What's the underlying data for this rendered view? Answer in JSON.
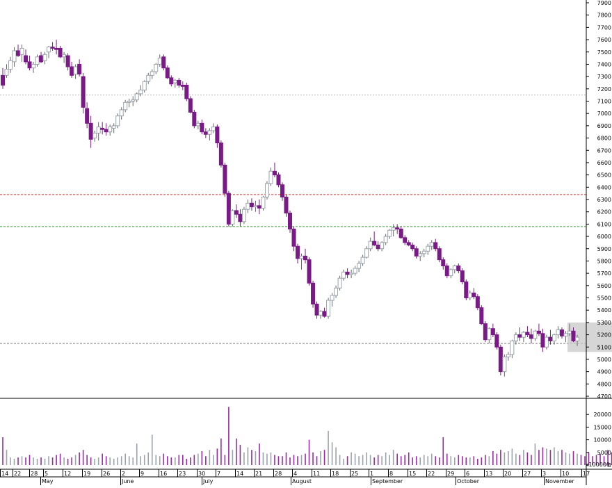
{
  "chart_data": {
    "type": "candlestick",
    "title": "",
    "colors": {
      "up": "#9aa3ab",
      "down": "#7a1a86",
      "volume": "#9a2aa6",
      "axis": "#000000",
      "highlight_box": "#c8c8c8"
    },
    "price_axis": {
      "ylim": [
        4700,
        7900
      ],
      "ticks": [
        7900,
        7800,
        7700,
        7600,
        7500,
        7400,
        7300,
        7200,
        7100,
        7000,
        6900,
        6800,
        6700,
        6600,
        6500,
        6400,
        6300,
        6200,
        6100,
        6000,
        5900,
        5800,
        5700,
        5600,
        5500,
        5400,
        5300,
        5200,
        5100,
        5000,
        4900,
        4800,
        4700
      ]
    },
    "volume_axis": {
      "ylim": [
        0,
        25000
      ],
      "ticks": [
        20000,
        15000,
        10000,
        5000,
        0
      ],
      "unit_label": "x100000"
    },
    "x_axis": {
      "day_labels": [
        "14",
        "22",
        "28",
        "5",
        "12",
        "19",
        "26",
        "2",
        "9",
        "16",
        "23",
        "30",
        "7",
        "14",
        "21",
        "28",
        "4",
        "11",
        "18",
        "25",
        "1",
        "8",
        "15",
        "22",
        "29",
        "6",
        "13",
        "20",
        "27",
        "3",
        "10",
        "17"
      ],
      "month_labels": [
        "May",
        "June",
        "July",
        "August",
        "September",
        "October",
        "November"
      ]
    },
    "reference_lines": [
      {
        "value": 7150,
        "color": "#bbbbbb",
        "style": "dotted"
      },
      {
        "value": 6340,
        "color": "#e03030",
        "style": "dashed"
      },
      {
        "value": 6080,
        "color": "#30a030",
        "style": "dashed"
      },
      {
        "value": 5130,
        "color": "#777777",
        "style": "dashed"
      }
    ],
    "highlight_range": {
      "low": 5060,
      "high": 5300,
      "from_index": 148,
      "to_index": 166
    },
    "series": [
      {
        "name": "Price",
        "ohlc": [
          [
            7310,
            7370,
            7200,
            7230
          ],
          [
            7310,
            7400,
            7290,
            7360
          ],
          [
            7360,
            7460,
            7330,
            7430
          ],
          [
            7420,
            7540,
            7380,
            7510
          ],
          [
            7510,
            7560,
            7460,
            7470
          ],
          [
            7480,
            7560,
            7420,
            7530
          ],
          [
            7470,
            7520,
            7400,
            7420
          ],
          [
            7420,
            7470,
            7350,
            7370
          ],
          [
            7370,
            7420,
            7330,
            7400
          ],
          [
            7400,
            7480,
            7380,
            7460
          ],
          [
            7470,
            7500,
            7410,
            7420
          ],
          [
            7430,
            7500,
            7400,
            7480
          ],
          [
            7500,
            7550,
            7450,
            7540
          ],
          [
            7540,
            7580,
            7510,
            7530
          ],
          [
            7530,
            7600,
            7480,
            7520
          ],
          [
            7530,
            7550,
            7450,
            7460
          ],
          [
            7460,
            7500,
            7410,
            7480
          ],
          [
            7470,
            7490,
            7350,
            7380
          ],
          [
            7380,
            7420,
            7290,
            7310
          ],
          [
            7320,
            7400,
            7280,
            7380
          ],
          [
            7400,
            7440,
            7300,
            7320
          ],
          [
            7300,
            7330,
            7000,
            7050
          ],
          [
            7040,
            7090,
            6880,
            6920
          ],
          [
            6920,
            6980,
            6720,
            6790
          ],
          [
            6800,
            6860,
            6770,
            6840
          ],
          [
            6840,
            6930,
            6780,
            6890
          ],
          [
            6880,
            6930,
            6830,
            6870
          ],
          [
            6870,
            6920,
            6820,
            6850
          ],
          [
            6850,
            6910,
            6820,
            6890
          ],
          [
            6880,
            6920,
            6840,
            6900
          ],
          [
            6900,
            7000,
            6880,
            6980
          ],
          [
            6980,
            7050,
            6950,
            7030
          ],
          [
            7030,
            7110,
            7010,
            7090
          ],
          [
            7090,
            7120,
            7050,
            7100
          ],
          [
            7100,
            7140,
            7060,
            7110
          ],
          [
            7110,
            7170,
            7090,
            7160
          ],
          [
            7160,
            7230,
            7140,
            7190
          ],
          [
            7190,
            7270,
            7170,
            7260
          ],
          [
            7260,
            7330,
            7240,
            7310
          ],
          [
            7310,
            7360,
            7280,
            7340
          ],
          [
            7340,
            7410,
            7320,
            7400
          ],
          [
            7400,
            7480,
            7380,
            7450
          ],
          [
            7460,
            7480,
            7350,
            7370
          ],
          [
            7370,
            7390,
            7280,
            7290
          ],
          [
            7290,
            7310,
            7220,
            7240
          ],
          [
            7250,
            7280,
            7210,
            7270
          ],
          [
            7270,
            7290,
            7210,
            7230
          ],
          [
            7230,
            7260,
            7190,
            7220
          ],
          [
            7230,
            7250,
            7100,
            7120
          ],
          [
            7120,
            7140,
            7000,
            7010
          ],
          [
            7010,
            7030,
            6880,
            6900
          ],
          [
            6900,
            6940,
            6870,
            6920
          ],
          [
            6920,
            6950,
            6830,
            6850
          ],
          [
            6850,
            6880,
            6800,
            6830
          ],
          [
            6830,
            6880,
            6780,
            6860
          ],
          [
            6860,
            6920,
            6840,
            6890
          ],
          [
            6890,
            6910,
            6720,
            6760
          ],
          [
            6760,
            6780,
            6560,
            6580
          ],
          [
            6580,
            6600,
            6320,
            6350
          ],
          [
            6350,
            6370,
            6080,
            6100
          ],
          [
            6100,
            6220,
            6080,
            6210
          ],
          [
            6210,
            6260,
            6150,
            6180
          ],
          [
            6180,
            6220,
            6080,
            6120
          ],
          [
            6120,
            6240,
            6100,
            6220
          ],
          [
            6220,
            6300,
            6190,
            6270
          ],
          [
            6270,
            6310,
            6210,
            6240
          ],
          [
            6240,
            6290,
            6200,
            6250
          ],
          [
            6250,
            6300,
            6180,
            6230
          ],
          [
            6230,
            6330,
            6210,
            6320
          ],
          [
            6320,
            6450,
            6300,
            6430
          ],
          [
            6430,
            6560,
            6410,
            6530
          ],
          [
            6530,
            6600,
            6480,
            6500
          ],
          [
            6500,
            6520,
            6400,
            6420
          ],
          [
            6420,
            6440,
            6290,
            6320
          ],
          [
            6320,
            6340,
            6160,
            6190
          ],
          [
            6190,
            6210,
            6030,
            6060
          ],
          [
            6060,
            6080,
            5880,
            5920
          ],
          [
            5920,
            5940,
            5780,
            5820
          ],
          [
            5820,
            5860,
            5730,
            5840
          ],
          [
            5840,
            5900,
            5780,
            5810
          ],
          [
            5810,
            5830,
            5600,
            5620
          ],
          [
            5620,
            5640,
            5420,
            5450
          ],
          [
            5450,
            5470,
            5330,
            5360
          ],
          [
            5360,
            5400,
            5330,
            5390
          ],
          [
            5390,
            5420,
            5340,
            5350
          ],
          [
            5350,
            5500,
            5330,
            5480
          ],
          [
            5480,
            5540,
            5430,
            5520
          ],
          [
            5520,
            5600,
            5500,
            5580
          ],
          [
            5580,
            5680,
            5560,
            5660
          ],
          [
            5660,
            5730,
            5640,
            5710
          ],
          [
            5710,
            5740,
            5660,
            5690
          ],
          [
            5690,
            5730,
            5660,
            5700
          ],
          [
            5700,
            5760,
            5680,
            5740
          ],
          [
            5740,
            5800,
            5710,
            5780
          ],
          [
            5780,
            5850,
            5760,
            5830
          ],
          [
            5830,
            5920,
            5820,
            5900
          ],
          [
            5900,
            5990,
            5880,
            5960
          ],
          [
            5960,
            6040,
            5920,
            5930
          ],
          [
            5930,
            5960,
            5880,
            5900
          ],
          [
            5900,
            5960,
            5880,
            5950
          ],
          [
            5950,
            6020,
            5930,
            6000
          ],
          [
            6000,
            6060,
            5980,
            6050
          ],
          [
            6050,
            6100,
            6000,
            6070
          ],
          [
            6070,
            6100,
            6020,
            6060
          ],
          [
            6060,
            6080,
            5980,
            5990
          ],
          [
            5990,
            6010,
            5930,
            5950
          ],
          [
            5950,
            5970,
            5920,
            5930
          ],
          [
            5930,
            5950,
            5880,
            5900
          ],
          [
            5900,
            5920,
            5820,
            5840
          ],
          [
            5840,
            5880,
            5800,
            5860
          ],
          [
            5860,
            5900,
            5830,
            5880
          ],
          [
            5880,
            5940,
            5850,
            5920
          ],
          [
            5920,
            5970,
            5890,
            5950
          ],
          [
            5950,
            5980,
            5880,
            5900
          ],
          [
            5900,
            5920,
            5790,
            5810
          ],
          [
            5810,
            5830,
            5730,
            5760
          ],
          [
            5760,
            5780,
            5660,
            5680
          ],
          [
            5680,
            5740,
            5660,
            5730
          ],
          [
            5730,
            5770,
            5700,
            5760
          ],
          [
            5760,
            5780,
            5700,
            5720
          ],
          [
            5720,
            5740,
            5610,
            5630
          ],
          [
            5630,
            5650,
            5480,
            5500
          ],
          [
            5500,
            5560,
            5480,
            5540
          ],
          [
            5540,
            5580,
            5490,
            5510
          ],
          [
            5510,
            5530,
            5400,
            5420
          ],
          [
            5420,
            5440,
            5280,
            5290
          ],
          [
            5290,
            5310,
            5140,
            5160
          ],
          [
            5160,
            5260,
            5130,
            5250
          ],
          [
            5250,
            5290,
            5180,
            5200
          ],
          [
            5200,
            5220,
            5080,
            5100
          ],
          [
            5100,
            5120,
            4870,
            4900
          ],
          [
            4900,
            5040,
            4860,
            5020
          ],
          [
            5020,
            5060,
            4990,
            5040
          ],
          [
            5040,
            5160,
            5010,
            5150
          ],
          [
            5150,
            5220,
            5120,
            5200
          ],
          [
            5200,
            5260,
            5150,
            5180
          ],
          [
            5180,
            5230,
            5140,
            5220
          ],
          [
            5220,
            5270,
            5180,
            5200
          ],
          [
            5200,
            5250,
            5130,
            5170
          ],
          [
            5170,
            5240,
            5150,
            5230
          ],
          [
            5230,
            5290,
            5190,
            5210
          ],
          [
            5210,
            5250,
            5060,
            5100
          ],
          [
            5100,
            5200,
            5080,
            5180
          ],
          [
            5180,
            5240,
            5120,
            5150
          ],
          [
            5150,
            5210,
            5120,
            5200
          ],
          [
            5200,
            5270,
            5170,
            5240
          ],
          [
            5240,
            5260,
            5170,
            5190
          ],
          [
            5190,
            5230,
            5140,
            5210
          ],
          [
            5210,
            5290,
            5190,
            5230
          ],
          [
            5230,
            5260,
            5140,
            5150
          ],
          [
            5150,
            5200,
            5110,
            5180
          ]
        ]
      },
      {
        "name": "Volume",
        "values": [
          11000,
          6000,
          3000,
          2500,
          3000,
          3500,
          3000,
          4000,
          3000,
          2500,
          3000,
          2500,
          3500,
          3000,
          4000,
          4500,
          3000,
          2500,
          3000,
          4000,
          5000,
          6000,
          4000,
          3000,
          2500,
          3000,
          4500,
          3500,
          3000,
          2500,
          3000,
          3500,
          4500,
          3500,
          3000,
          8500,
          3500,
          4000,
          5000,
          12000,
          4000,
          3500,
          4500,
          3500,
          3000,
          3000,
          4000,
          4000,
          2500,
          3000,
          4000,
          4500,
          5500,
          3500,
          6000,
          4000,
          6500,
          10500,
          4000,
          23000,
          6000,
          10500,
          8000,
          5000,
          7000,
          6000,
          5500,
          8500,
          5000,
          4500,
          5000,
          4000,
          3500,
          3500,
          5000,
          3000,
          4000,
          3500,
          4000,
          4500,
          10000,
          5000,
          3500,
          5500,
          6000,
          13500,
          9000,
          7000,
          4000,
          2500,
          3500,
          5000,
          4500,
          3500,
          4000,
          5000,
          4000,
          3000,
          4000,
          3500,
          5000,
          4000,
          6000,
          4500,
          3500,
          4000,
          5000,
          3000,
          3500,
          3000,
          4000,
          3500,
          4500,
          3500,
          3000,
          11000,
          4500,
          3500,
          3000,
          4000,
          3500,
          3000,
          3000,
          3500,
          2500,
          3000,
          4000,
          3500,
          5500,
          4500,
          6000,
          5000,
          5500,
          6500,
          4500,
          4000,
          6000,
          5000,
          4000,
          8500,
          6000,
          7000,
          6500,
          6000,
          7000,
          5500,
          6000,
          5000,
          4500,
          5500,
          4500,
          4000,
          3500,
          5000,
          3500,
          4000,
          4500,
          3500,
          6000,
          5000,
          3000
        ]
      }
    ]
  }
}
